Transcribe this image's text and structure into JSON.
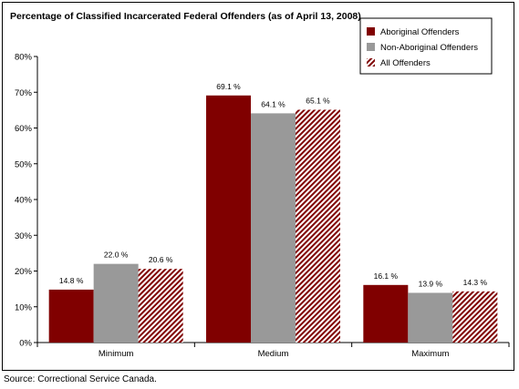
{
  "chart_data": {
    "type": "bar",
    "title": "Percentage of Classified Incarcerated Federal Offenders (as of April 13, 2008)",
    "categories": [
      "Minimum",
      "Medium",
      "Maximum"
    ],
    "series": [
      {
        "name": "Aboriginal Offenders",
        "values": [
          14.8,
          69.1,
          16.1
        ],
        "labels": [
          "14.8 %",
          "69.1 %",
          "16.1 %"
        ],
        "color": "#800000",
        "pattern": "solid"
      },
      {
        "name": "Non-Aboriginal Offenders",
        "values": [
          22.0,
          64.1,
          13.9
        ],
        "labels": [
          "22.0 %",
          "64.1 %",
          "13.9 %"
        ],
        "color": "#999999",
        "pattern": "solid"
      },
      {
        "name": "All Offenders",
        "values": [
          20.6,
          65.1,
          14.3
        ],
        "labels": [
          "20.6 %",
          "65.1 %",
          "14.3 %"
        ],
        "color": "#800000",
        "pattern": "diagonal-hatch"
      }
    ],
    "xlabel": "",
    "ylabel": "",
    "ylim": [
      0,
      80
    ],
    "yticks": [
      0,
      10,
      20,
      30,
      40,
      50,
      60,
      70,
      80
    ],
    "ytick_labels": [
      "0%",
      "10%",
      "20%",
      "30%",
      "40%",
      "50%",
      "60%",
      "70%",
      "80%"
    ],
    "grid": false,
    "legend_position": "top-right"
  },
  "source": "Source:  Correctional Service Canada."
}
